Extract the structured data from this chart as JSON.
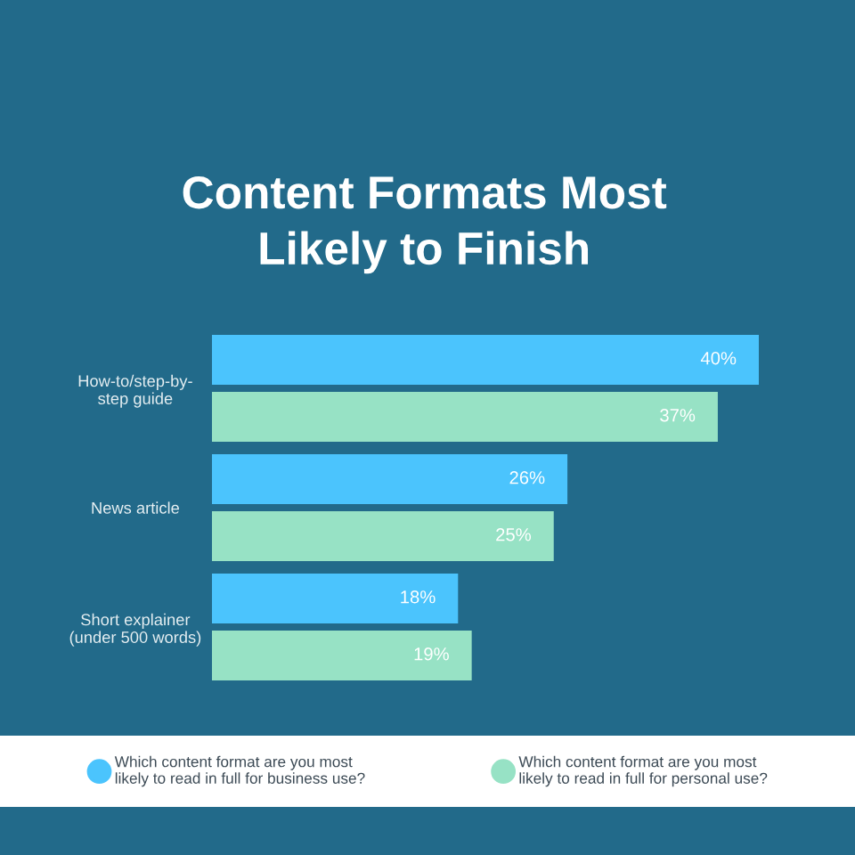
{
  "chart_data": {
    "type": "bar",
    "orientation": "horizontal",
    "title": "Content Formats Most\nLikely to Finish",
    "categories": [
      "How-to/step-by-\nstep guide",
      "News article",
      "Short explainer\n(under 500 words)"
    ],
    "series": [
      {
        "name": "Which content format are you most\nlikely to read in full for business use?",
        "color": "#4bc4fd",
        "values": [
          40,
          26,
          18
        ],
        "value_labels": [
          "40%",
          "26%",
          "18%"
        ]
      },
      {
        "name": "Which content format are you most\nlikely to read in full for personal use?",
        "color": "#97e2c5",
        "values": [
          37,
          25,
          19
        ],
        "value_labels": [
          "37%",
          "25%",
          "19%"
        ]
      }
    ],
    "legend": "bottom",
    "tick_labels": "y"
  }
}
